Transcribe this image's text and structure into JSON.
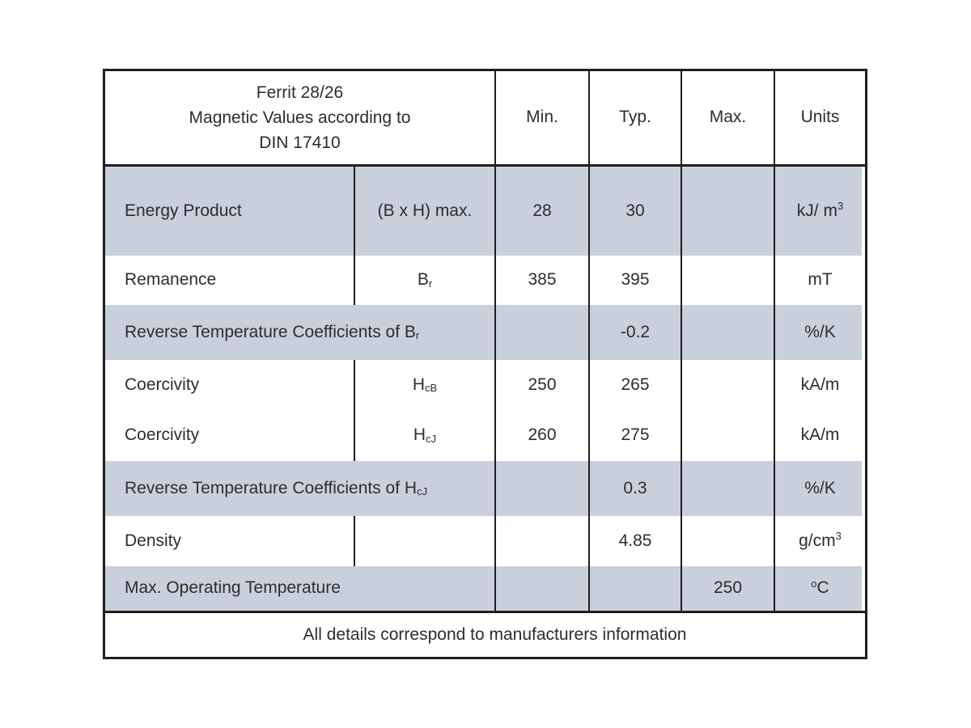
{
  "colors": {
    "background": "#ffffff",
    "row_shade": "#c9d0db",
    "line": "#201d1e",
    "text": "#2e2c2d"
  },
  "table": {
    "header": {
      "title_lines": [
        "Ferrit 28/26",
        "Magnetic Values according to",
        "DIN 17410"
      ],
      "columns": [
        "Min.",
        "Typ.",
        "Max.",
        "Units"
      ]
    },
    "rows": [
      {
        "label": [
          {
            "t": "Energy Product"
          }
        ],
        "symbol": [
          {
            "t": "(B x H) max."
          }
        ],
        "min": "28",
        "typ": "30",
        "max": "",
        "unit": [
          {
            "t": "kJ/ m"
          },
          {
            "t": "3",
            "v": "sup"
          }
        ]
      },
      {
        "label": [
          {
            "t": "Remanence"
          }
        ],
        "symbol": [
          {
            "t": "B"
          },
          {
            "t": "r",
            "v": "sub"
          }
        ],
        "min": "385",
        "typ": "395",
        "max": "",
        "unit": [
          {
            "t": "mT"
          }
        ]
      },
      {
        "label": [
          {
            "t": "Reverse Temperature Coefficients of B"
          },
          {
            "t": "r",
            "v": "sub"
          }
        ],
        "symbol": [],
        "min": "",
        "typ": "-0.2",
        "max": "",
        "unit": [
          {
            "t": "%/K"
          }
        ]
      },
      {
        "label": [
          {
            "t": "Coercivity"
          }
        ],
        "symbol": [
          {
            "t": "H"
          },
          {
            "t": "cB",
            "v": "sub"
          }
        ],
        "min": "250",
        "typ": "265",
        "max": "",
        "unit": [
          {
            "t": "kA/m"
          }
        ]
      },
      {
        "label": [
          {
            "t": "Coercivity"
          }
        ],
        "symbol": [
          {
            "t": "H"
          },
          {
            "t": "cJ",
            "v": "sub"
          }
        ],
        "min": "260",
        "typ": "275",
        "max": "",
        "unit": [
          {
            "t": "kA/m"
          }
        ]
      },
      {
        "label": [
          {
            "t": "Reverse Temperature Coefficients of H"
          },
          {
            "t": "cJ",
            "v": "sub"
          }
        ],
        "symbol": [],
        "min": "",
        "typ": "0.3",
        "max": "",
        "unit": [
          {
            "t": "%/K"
          }
        ]
      },
      {
        "label": [
          {
            "t": "Density"
          }
        ],
        "symbol": [],
        "min": "",
        "typ": "4.85",
        "max": "",
        "unit": [
          {
            "t": "g/cm"
          },
          {
            "t": "3",
            "v": "sup"
          }
        ]
      },
      {
        "label": [
          {
            "t": "Max. Operating Temperature"
          }
        ],
        "symbol": [],
        "min": "",
        "typ": "",
        "max": "250",
        "unit": [
          {
            "t": "o",
            "v": "sup"
          },
          {
            "t": "C"
          }
        ]
      }
    ],
    "footer": "All details correspond to manufacturers information"
  }
}
